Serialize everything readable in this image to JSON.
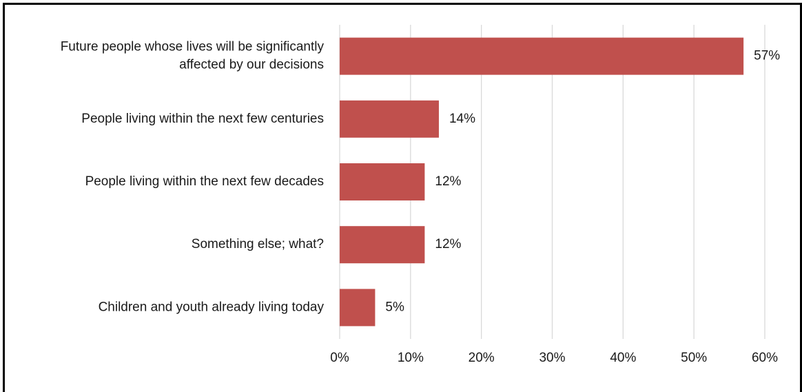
{
  "chart_data": {
    "type": "bar",
    "orientation": "horizontal",
    "categories": [
      [
        "Future people whose lives will be significantly",
        "affected by our decisions"
      ],
      [
        "People living within the next few centuries"
      ],
      [
        "People living within the next few decades"
      ],
      [
        "Something else; what?"
      ],
      [
        "Children and youth already living today"
      ]
    ],
    "values": [
      57,
      14,
      12,
      12,
      5
    ],
    "data_labels": [
      "57%",
      "14%",
      "12%",
      "12%",
      "5%"
    ],
    "xticks": [
      0,
      10,
      20,
      30,
      40,
      50,
      60
    ],
    "xtick_labels": [
      "0%",
      "10%",
      "20%",
      "30%",
      "40%",
      "50%",
      "60%"
    ],
    "xlim": [
      0,
      60
    ],
    "grid": true,
    "bar_color": "#c0504d",
    "title": "",
    "xlabel": "",
    "ylabel": ""
  }
}
